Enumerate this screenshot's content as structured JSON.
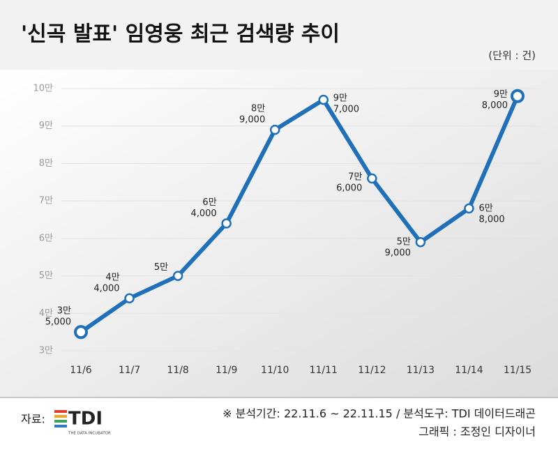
{
  "chart_data": {
    "type": "line",
    "title": "'신곡 발표' 임영웅 최근 검색량 추이",
    "unit_note": "(단위 : 건)",
    "categories": [
      "11/6",
      "11/7",
      "11/8",
      "11/9",
      "11/10",
      "11/11",
      "11/12",
      "11/13",
      "11/14",
      "11/15"
    ],
    "values": [
      35000,
      44000,
      50000,
      64000,
      89000,
      97000,
      76000,
      59000,
      68000,
      98000
    ],
    "value_labels": [
      [
        "3만",
        "5,000"
      ],
      [
        "4만",
        "4,000"
      ],
      [
        "5만"
      ],
      [
        "6만",
        "4,000"
      ],
      [
        "8만",
        "9,000"
      ],
      [
        "9만",
        "7,000"
      ],
      [
        "7만",
        "6,000"
      ],
      [
        "5만",
        "9,000"
      ],
      [
        "6만",
        "8,000"
      ],
      [
        "9만",
        "8,000"
      ]
    ],
    "color": "#1f70b8",
    "ylim": [
      30000,
      100000
    ],
    "yticks": [
      {
        "value": 30000,
        "label": "3만"
      },
      {
        "value": 40000,
        "label": "4만"
      },
      {
        "value": 50000,
        "label": "5만"
      },
      {
        "value": 60000,
        "label": "6만"
      },
      {
        "value": 70000,
        "label": "7만"
      },
      {
        "value": 80000,
        "label": "8만"
      },
      {
        "value": 90000,
        "label": "9만"
      },
      {
        "value": 100000,
        "label": "10만"
      }
    ],
    "grid": true,
    "source_label": "자료:",
    "logo": {
      "name": "TDI",
      "tagline": "THE DATA INCUBATOR"
    },
    "notes": [
      "※ 분석기간: 22.11.6 ~ 22.11.15 / 분석도구: TDI 데이터드래곤",
      "그래픽 : 조정인 디자이너"
    ]
  }
}
